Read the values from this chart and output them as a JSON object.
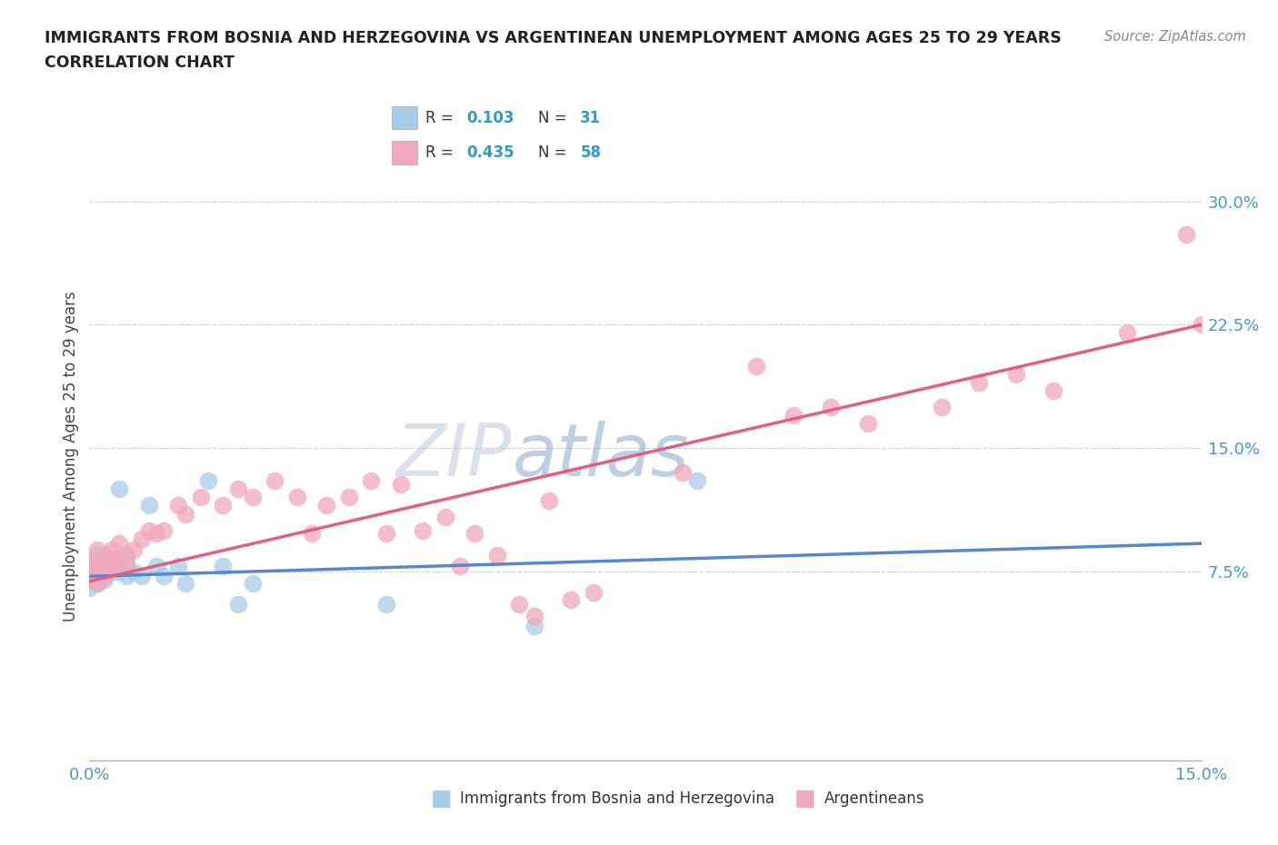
{
  "title_line1": "IMMIGRANTS FROM BOSNIA AND HERZEGOVINA VS ARGENTINEAN UNEMPLOYMENT AMONG AGES 25 TO 29 YEARS",
  "title_line2": "CORRELATION CHART",
  "source_text": "Source: ZipAtlas.com",
  "ylabel": "Unemployment Among Ages 25 to 29 years",
  "xlim": [
    0.0,
    0.15
  ],
  "ylim": [
    -0.04,
    0.33
  ],
  "yticks": [
    0.075,
    0.15,
    0.225,
    0.3
  ],
  "ytick_labels": [
    "7.5%",
    "15.0%",
    "22.5%",
    "30.0%"
  ],
  "xticks": [
    0.0,
    0.025,
    0.05,
    0.075,
    0.1,
    0.125,
    0.15
  ],
  "xtick_labels": [
    "0.0%",
    "",
    "",
    "",
    "",
    "",
    "15.0%"
  ],
  "watermark_top": "ZIP",
  "watermark_bottom": "atlas",
  "watermark_color": "#ccd8e8",
  "bosnia_color": "#a8cce8",
  "argentina_color": "#f0a8bc",
  "bosnia_line_color": "#5588cc",
  "argentina_line_color": "#e06080",
  "background_color": "#ffffff",
  "grid_color": "#cccccc",
  "title_color": "#222222",
  "axis_label_color": "#444444",
  "tick_label_color": "#4499cc",
  "bosnia_x": [
    0.0,
    0.0,
    0.0,
    0.001,
    0.001,
    0.001,
    0.001,
    0.002,
    0.002,
    0.002,
    0.003,
    0.003,
    0.003,
    0.004,
    0.004,
    0.005,
    0.005,
    0.006,
    0.007,
    0.008,
    0.009,
    0.01,
    0.012,
    0.013,
    0.016,
    0.018,
    0.02,
    0.022,
    0.04,
    0.06,
    0.082
  ],
  "bosnia_y": [
    0.065,
    0.072,
    0.08,
    0.068,
    0.075,
    0.08,
    0.085,
    0.07,
    0.075,
    0.082,
    0.075,
    0.08,
    0.082,
    0.075,
    0.125,
    0.072,
    0.082,
    0.075,
    0.072,
    0.115,
    0.078,
    0.072,
    0.078,
    0.068,
    0.13,
    0.078,
    0.055,
    0.068,
    0.055,
    0.042,
    0.13
  ],
  "argentina_x": [
    0.0,
    0.0,
    0.0,
    0.001,
    0.001,
    0.001,
    0.001,
    0.002,
    0.002,
    0.002,
    0.003,
    0.003,
    0.003,
    0.004,
    0.004,
    0.005,
    0.005,
    0.006,
    0.007,
    0.008,
    0.009,
    0.01,
    0.012,
    0.013,
    0.015,
    0.018,
    0.02,
    0.022,
    0.025,
    0.028,
    0.03,
    0.032,
    0.035,
    0.038,
    0.04,
    0.042,
    0.045,
    0.048,
    0.05,
    0.052,
    0.055,
    0.058,
    0.06,
    0.062,
    0.065,
    0.068,
    0.08,
    0.09,
    0.095,
    0.1,
    0.105,
    0.115,
    0.12,
    0.125,
    0.13,
    0.14,
    0.148,
    0.15
  ],
  "argentina_y": [
    0.07,
    0.075,
    0.082,
    0.068,
    0.075,
    0.08,
    0.088,
    0.072,
    0.078,
    0.085,
    0.078,
    0.082,
    0.088,
    0.082,
    0.092,
    0.078,
    0.085,
    0.088,
    0.095,
    0.1,
    0.098,
    0.1,
    0.115,
    0.11,
    0.12,
    0.115,
    0.125,
    0.12,
    0.13,
    0.12,
    0.098,
    0.115,
    0.12,
    0.13,
    0.098,
    0.128,
    0.1,
    0.108,
    0.078,
    0.098,
    0.085,
    0.055,
    0.048,
    0.118,
    0.058,
    0.062,
    0.135,
    0.2,
    0.17,
    0.175,
    0.165,
    0.175,
    0.19,
    0.195,
    0.185,
    0.22,
    0.28,
    0.225
  ],
  "bosnia_line_x": [
    0.0,
    0.15
  ],
  "bosnia_line_y": [
    0.072,
    0.092
  ],
  "argentina_line_x": [
    0.0,
    0.15
  ],
  "argentina_line_y": [
    0.069,
    0.225
  ],
  "legend_r1": "R = 0.103   N = 31",
  "legend_r2": "R = 0.435   N = 58",
  "legend_r1_val": "0.103",
  "legend_n1_val": "31",
  "legend_r2_val": "0.435",
  "legend_n2_val": "58"
}
